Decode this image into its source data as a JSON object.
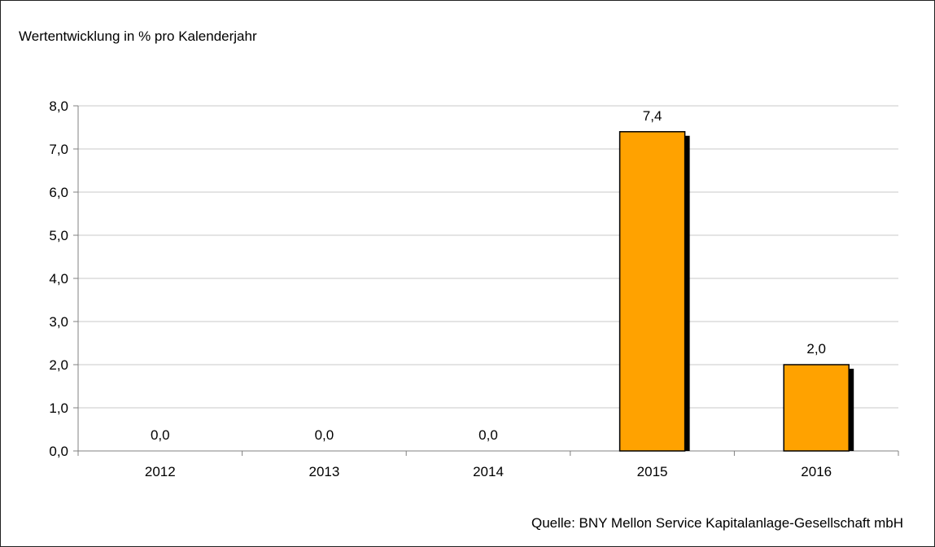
{
  "chart_data": {
    "type": "bar",
    "title": "Wertentwicklung in % pro Kalenderjahr",
    "categories": [
      "2012",
      "2013",
      "2014",
      "2015",
      "2016"
    ],
    "values": [
      0.0,
      0.0,
      0.0,
      7.4,
      2.0
    ],
    "value_labels": [
      "0,0",
      "0,0",
      "0,0",
      "7,4",
      "2,0"
    ],
    "ylim": [
      0,
      8
    ],
    "yticks": [
      "0,0",
      "1,0",
      "2,0",
      "3,0",
      "4,0",
      "5,0",
      "6,0",
      "7,0",
      "8,0"
    ],
    "xlabel": "",
    "ylabel": "",
    "grid": true,
    "colors": {
      "bar": "#FFA200",
      "bar_border": "#000000",
      "shadow": "#000000",
      "grid": "#c8c8c8",
      "axis": "#808080"
    },
    "source": "Quelle: BNY Mellon Service Kapitalanlage-Gesellschaft mbH"
  }
}
